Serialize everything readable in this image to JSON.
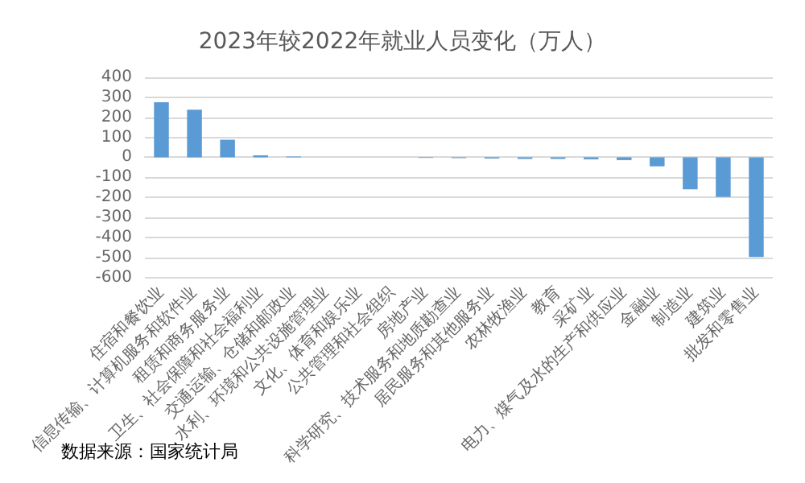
{
  "chart_data": {
    "type": "bar",
    "title": "2023年较2022年就业人员变化（万人）",
    "categories": [
      "住宿和餐饮业",
      "信息传输、计算机服务和软件业",
      "租赁和商务服务业",
      "卫生、社会保障和社会福利业",
      "交通运输、仓储和邮政业",
      "水利、环境和公共设施管理业",
      "文化、体育和娱乐业",
      "公共管理和社会组织",
      "房地产业",
      "科学研究、技术服务和地质勘查业",
      "居民服务和其他服务业",
      "农林牧渔业",
      "教育",
      "采矿业",
      "电力、煤气及水的生产和供应业",
      "金融业",
      "制造业",
      "建筑业",
      "批发和零售业"
    ],
    "values": [
      275,
      238,
      88,
      10,
      4,
      0,
      0,
      0,
      -3,
      -4,
      -6,
      -8,
      -8,
      -10,
      -14,
      -45,
      -160,
      -198,
      -498
    ],
    "color": "#5b9bd5",
    "ylim": [
      -600,
      400
    ],
    "yticks": [
      -600,
      -500,
      -400,
      -300,
      -200,
      -100,
      0,
      100,
      200,
      300,
      400
    ],
    "grid": "y",
    "annotations": [
      "数据来源：国家统计局"
    ]
  }
}
